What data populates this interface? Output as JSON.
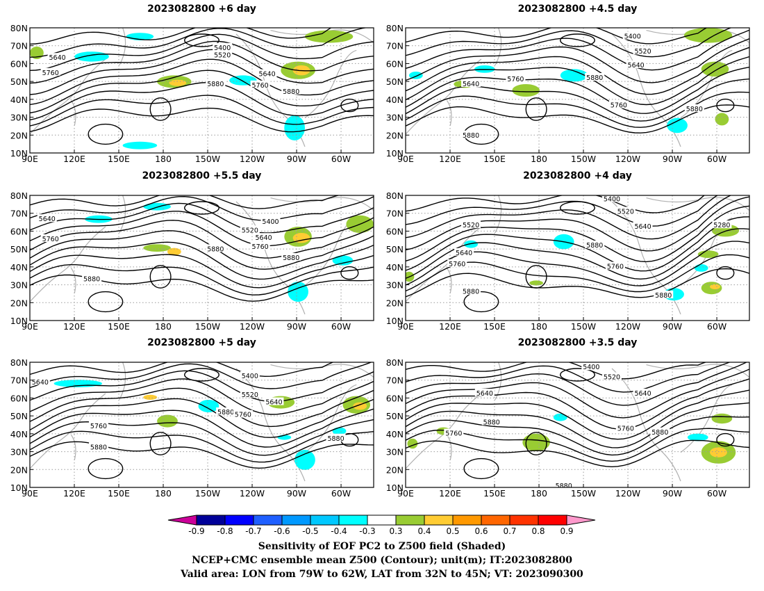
{
  "panels": [
    {
      "title": "2023082800  +6 day",
      "labels": [
        "5400",
        "5520",
        "5640",
        "5760",
        "5640",
        "5760",
        "5880",
        "5880"
      ]
    },
    {
      "title": "2023082800  +4.5 day",
      "labels": [
        "5400",
        "5520",
        "5640",
        "5640",
        "5760",
        "5880",
        "5760",
        "5880",
        "5880"
      ]
    },
    {
      "title": "2023082800  +5.5 day",
      "labels": [
        "5640",
        "5760",
        "5400",
        "5520",
        "5640",
        "5760",
        "5880",
        "5880",
        "5880"
      ]
    },
    {
      "title": "2023082800  +4 day",
      "labels": [
        "5400",
        "5520",
        "5280",
        "5640",
        "5520",
        "5640",
        "5760",
        "5880",
        "5760",
        "5880",
        "5880"
      ]
    },
    {
      "title": "2023082800  +5 day",
      "labels": [
        "5640",
        "5400",
        "5520",
        "5640",
        "5880",
        "5760",
        "5760",
        "5880",
        "5880"
      ]
    },
    {
      "title": "2023082800  +3.5 day",
      "labels": [
        "5400",
        "5520",
        "5640",
        "5640",
        "5880",
        "5760",
        "5760",
        "5880",
        "5880"
      ]
    }
  ],
  "axes": {
    "lat_labels": [
      "80N",
      "70N",
      "60N",
      "50N",
      "40N",
      "30N",
      "20N",
      "10N"
    ],
    "lon_labels": [
      "90E",
      "120E",
      "150E",
      "180",
      "150W",
      "120W",
      "90W",
      "60W"
    ]
  },
  "colorbar": {
    "labels": [
      "-0.9",
      "-0.8",
      "-0.7",
      "-0.6",
      "-0.5",
      "-0.4",
      "-0.3",
      "0.3",
      "0.4",
      "0.5",
      "0.6",
      "0.7",
      "0.8",
      "0.9"
    ],
    "colors": [
      "#000099",
      "#0000ff",
      "#1f5fff",
      "#0099ff",
      "#00c8ff",
      "#00ffff",
      "#ffffff",
      "#99cc33",
      "#ffcc33",
      "#ff9900",
      "#ff6600",
      "#ff3300",
      "#ff0000"
    ],
    "low_end_color": "#cc0099",
    "high_end_color": "#ff99cc"
  },
  "caption": {
    "line1": "Sensitivity of EOF PC2 to Z500 field (Shaded)",
    "line2": "NCEP+CMC ensemble mean Z500 (Contour); unit(m); IT:2023082800",
    "line3": "Valid area: LON from 79W to 62W, LAT from 32N to 45N; VT: 2023090300"
  }
}
